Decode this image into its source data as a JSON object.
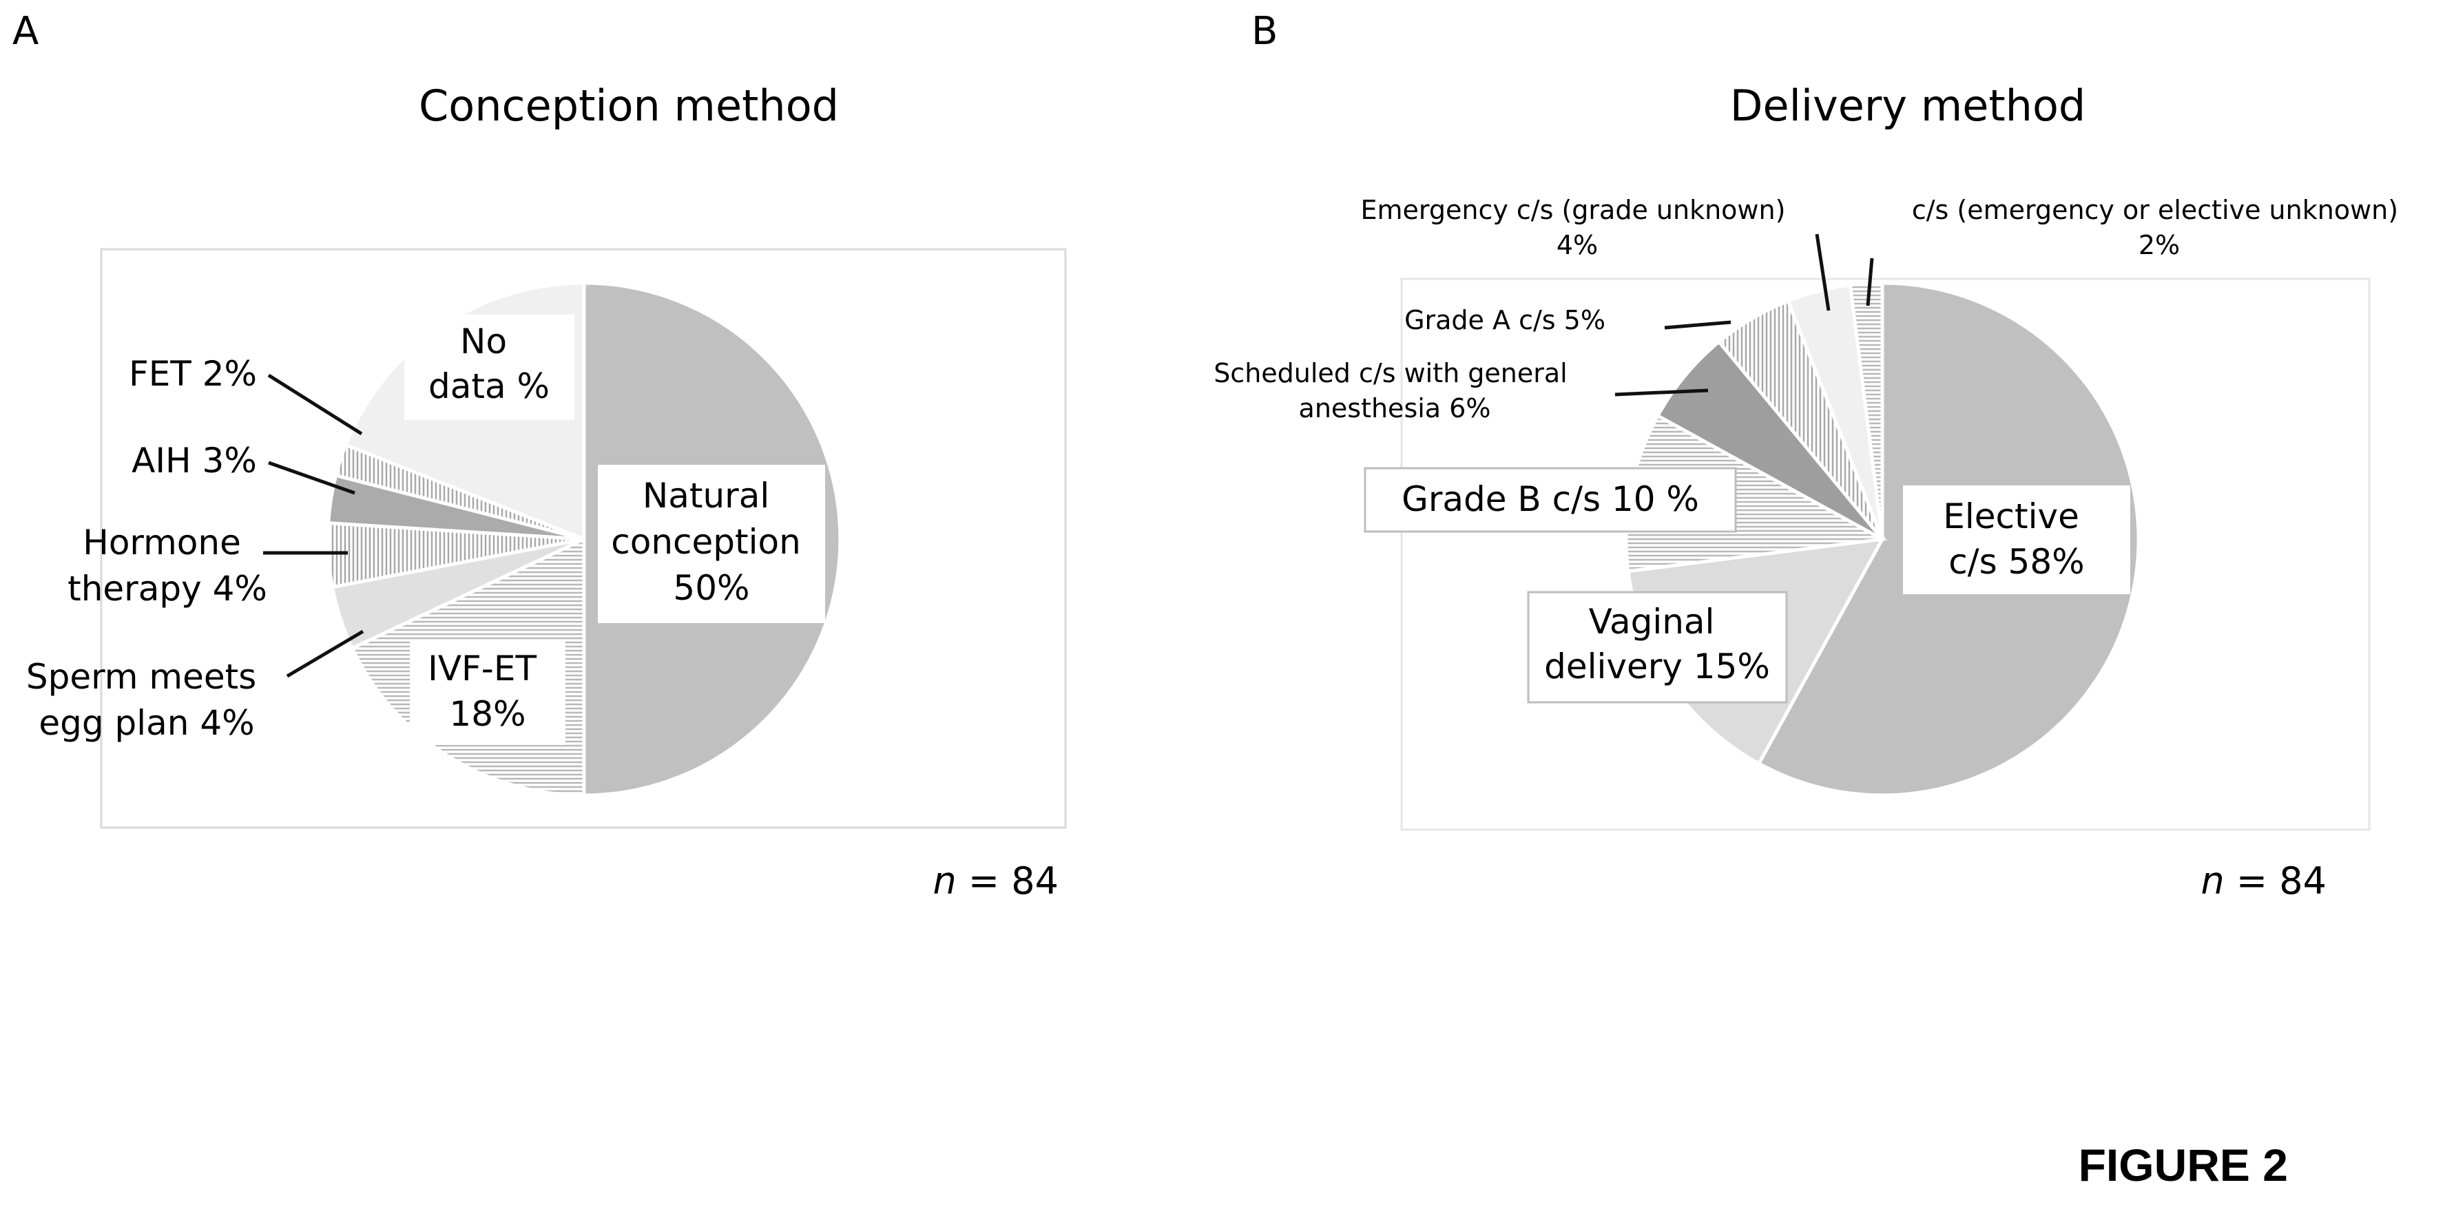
{
  "figure_label": "FIGURE 2",
  "chart_data": [
    {
      "type": "pie",
      "panel_label": "A",
      "title": "Conception method",
      "n_text": "n = 84",
      "n_italic": "n",
      "n_rest": " = 84",
      "slices": [
        {
          "name": "Natural conception",
          "value": 50,
          "label_lines": [
            "Natural",
            "conception",
            "50%"
          ],
          "fill": "#c0c0c0",
          "pattern": "none"
        },
        {
          "name": "IVF-ET",
          "value": 18,
          "label_lines": [
            "IVF-ET",
            "18%"
          ],
          "fill": "#ffffff",
          "pattern": "hlines"
        },
        {
          "name": "Sperm meets egg plan",
          "value": 4,
          "label_lines": [
            "Sperm meets",
            "egg plan 4%"
          ],
          "fill": "#e0e0e0",
          "pattern": "none"
        },
        {
          "name": "Hormone therapy",
          "value": 4,
          "label_lines": [
            "Hormone",
            "therapy 4%"
          ],
          "fill": "#ffffff",
          "pattern": "vlines"
        },
        {
          "name": "AIH",
          "value": 3,
          "label_lines": [
            "AIH 3%"
          ],
          "fill": "#ababab",
          "pattern": "none"
        },
        {
          "name": "FET",
          "value": 2,
          "label_lines": [
            "FET 2%"
          ],
          "fill": "#ffffff",
          "pattern": "vlines"
        },
        {
          "name": "No data",
          "value": 19,
          "label_lines": [
            "No",
            "data %"
          ],
          "fill": "#f0f0f0",
          "pattern": "none"
        }
      ]
    },
    {
      "type": "pie",
      "panel_label": "B",
      "title": "Delivery method",
      "n_text": "n = 84",
      "n_italic": "n",
      "n_rest": " = 84",
      "slices": [
        {
          "name": "Elective c/s",
          "value": 58,
          "label_lines": [
            "Elective",
            "c/s 58%"
          ],
          "fill": "#c0c0c0",
          "pattern": "none"
        },
        {
          "name": "Vaginal delivery",
          "value": 15,
          "label_lines": [
            "Vaginal",
            "delivery 15%"
          ],
          "fill": "#dcdcdc",
          "pattern": "none"
        },
        {
          "name": "Grade B c/s",
          "value": 10,
          "label_lines": [
            "Grade B c/s 10 %"
          ],
          "fill": "#ffffff",
          "pattern": "hlines"
        },
        {
          "name": "Scheduled c/s with general anesthesia",
          "value": 6,
          "label_lines": [
            "Scheduled c/s with general",
            "anesthesia 6%"
          ],
          "fill": "#9e9e9e",
          "pattern": "none"
        },
        {
          "name": "Grade A c/s",
          "value": 5,
          "label_lines": [
            "Grade A c/s 5%"
          ],
          "fill": "#ffffff",
          "pattern": "vlines"
        },
        {
          "name": "Emergency c/s (grade unknown)",
          "value": 4,
          "label_lines": [
            "Emergency c/s (grade unknown)",
            "4%"
          ],
          "fill": "#f0f0f0",
          "pattern": "none"
        },
        {
          "name": "c/s (emergency or elective unknown)",
          "value": 2,
          "label_lines": [
            "c/s (emergency or elective unknown)",
            "2%"
          ],
          "fill": "#ffffff",
          "pattern": "hlines"
        }
      ]
    }
  ]
}
